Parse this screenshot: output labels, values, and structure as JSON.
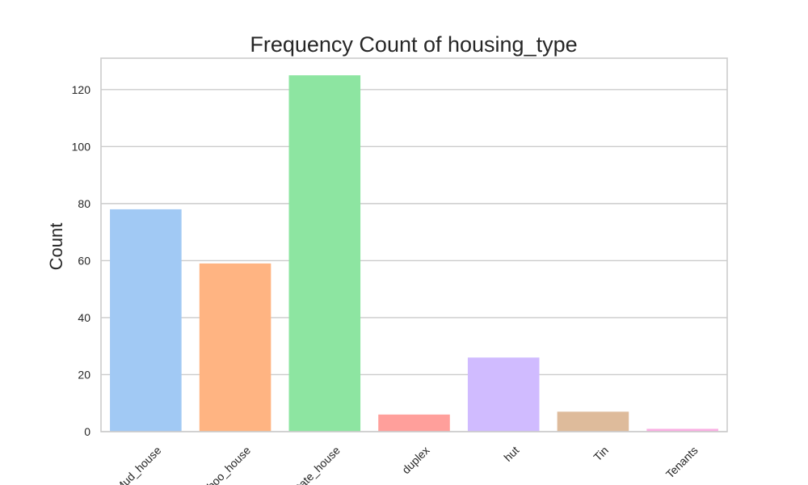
{
  "chart_data": {
    "type": "bar",
    "title": "Frequency Count of housing_type",
    "xlabel": "",
    "ylabel": "Count",
    "categories": [
      "Mud_house",
      "Bamboo_house",
      "Estate_house",
      "duplex",
      "hut",
      "Tin",
      "Tenants"
    ],
    "values": [
      78,
      59,
      125,
      6,
      26,
      7,
      1
    ],
    "ylim": [
      0,
      131
    ],
    "yticks": [
      0,
      20,
      40,
      60,
      80,
      100,
      120
    ],
    "grid": "horizontal",
    "legend": "none",
    "colors": [
      "#a1c9f4",
      "#ffb482",
      "#8de5a1",
      "#ff9f9b",
      "#d0bbff",
      "#debb9b",
      "#fab0e4"
    ],
    "gridColor": "#cccccc",
    "frameColor": "#cccccc",
    "textColor": "#262626"
  }
}
